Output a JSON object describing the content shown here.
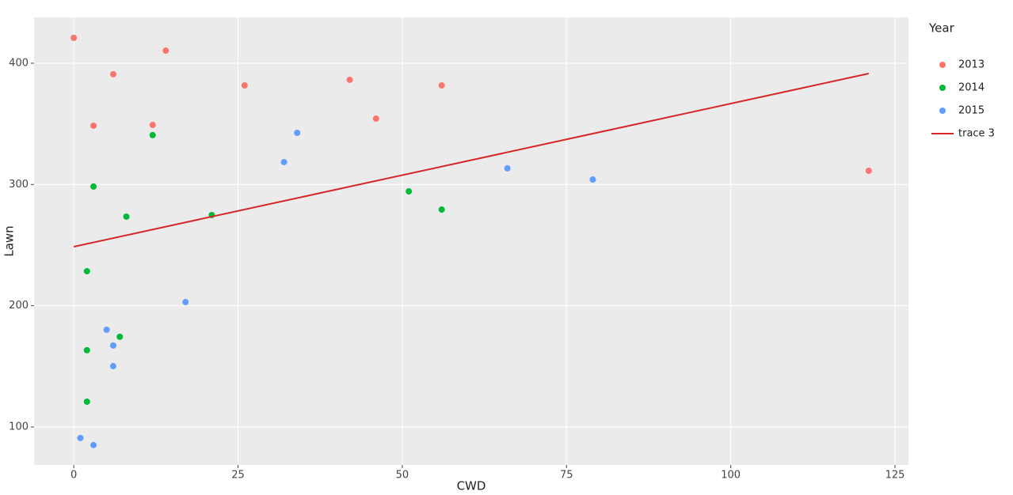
{
  "chart_data": {
    "type": "scatter",
    "x_label": "CWD",
    "y_label": "Lawn",
    "legend_title": "Year",
    "xlim": [
      -6.05,
      127.05
    ],
    "ylim": [
      68.7,
      437.8
    ],
    "xticks": [
      0,
      25,
      50,
      75,
      100,
      125
    ],
    "yticks": [
      100,
      200,
      300,
      400
    ],
    "grid": true,
    "legend_position": "right",
    "series": [
      {
        "name": "2013",
        "color": "#F8766D",
        "mode": "markers",
        "x": [
          0,
          3,
          6,
          12,
          14,
          26,
          42,
          46,
          56,
          121
        ],
        "values": [
          420.9,
          348.5,
          390.9,
          349.1,
          410.4,
          381.7,
          386.3,
          354.3,
          381.7,
          311.3
        ]
      },
      {
        "name": "2014",
        "color": "#00BA38",
        "mode": "markers",
        "x": [
          12,
          3,
          8,
          2,
          2,
          7,
          2,
          21,
          51,
          56
        ],
        "values": [
          340.7,
          298.3,
          273.5,
          228.5,
          163.3,
          174.4,
          120.9,
          274.8,
          294.3,
          279.3
        ]
      },
      {
        "name": "2015",
        "color": "#619CFF",
        "mode": "markers",
        "x": [
          34,
          32,
          17,
          5,
          6,
          6,
          1,
          3,
          66,
          79
        ],
        "values": [
          342.6,
          318.5,
          203.0,
          180.2,
          167.2,
          150.2,
          90.9,
          85.1,
          313.3,
          304.1
        ]
      },
      {
        "name": "trace 3",
        "color": "#D62728",
        "mode": "lines",
        "x": [
          0,
          121
        ],
        "values": [
          248.7,
          391.5
        ]
      }
    ]
  }
}
